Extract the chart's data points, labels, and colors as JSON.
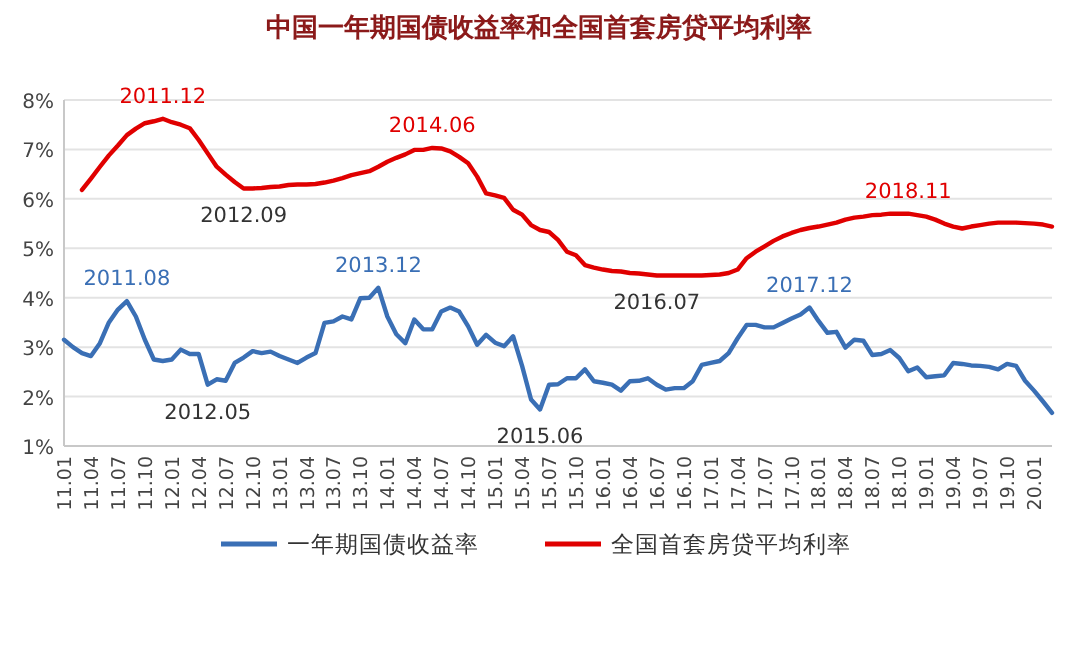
{
  "chart_data": {
    "type": "line",
    "title": "中国一年期国债收益率和全国首套房贷平均利率",
    "x": [
      "2011-01",
      "2011-02",
      "2011-03",
      "2011-04",
      "2011-05",
      "2011-06",
      "2011-07",
      "2011-08",
      "2011-09",
      "2011-10",
      "2011-11",
      "2011-12",
      "2012-01",
      "2012-02",
      "2012-03",
      "2012-04",
      "2012-05",
      "2012-06",
      "2012-07",
      "2012-08",
      "2012-09",
      "2012-10",
      "2012-11",
      "2012-12",
      "2013-01",
      "2013-02",
      "2013-03",
      "2013-04",
      "2013-05",
      "2013-06",
      "2013-07",
      "2013-08",
      "2013-09",
      "2013-10",
      "2013-11",
      "2013-12",
      "2014-01",
      "2014-02",
      "2014-03",
      "2014-04",
      "2014-05",
      "2014-06",
      "2014-07",
      "2014-08",
      "2014-09",
      "2014-10",
      "2014-11",
      "2014-12",
      "2015-01",
      "2015-02",
      "2015-03",
      "2015-04",
      "2015-05",
      "2015-06",
      "2015-07",
      "2015-08",
      "2015-09",
      "2015-10",
      "2015-11",
      "2015-12",
      "2016-01",
      "2016-02",
      "2016-03",
      "2016-04",
      "2016-05",
      "2016-06",
      "2016-07",
      "2016-08",
      "2016-09",
      "2016-10",
      "2016-11",
      "2016-12",
      "2017-01",
      "2017-02",
      "2017-03",
      "2017-04",
      "2017-05",
      "2017-06",
      "2017-07",
      "2017-08",
      "2017-09",
      "2017-10",
      "2017-11",
      "2017-12",
      "2018-01",
      "2018-02",
      "2018-03",
      "2018-04",
      "2018-05",
      "2018-06",
      "2018-07",
      "2018-08",
      "2018-09",
      "2018-10",
      "2018-11",
      "2018-12",
      "2019-01",
      "2019-02",
      "2019-03",
      "2019-04",
      "2019-05",
      "2019-06",
      "2019-07",
      "2019-08",
      "2019-09",
      "2019-10",
      "2019-11",
      "2019-12",
      "2020-01",
      "2020-02",
      "2020-03"
    ],
    "series": [
      {
        "name": "一年期国债收益率",
        "color": "#3a6fb5",
        "values": [
          3.15,
          3.0,
          2.88,
          2.82,
          3.08,
          3.5,
          3.76,
          3.93,
          3.62,
          3.15,
          2.75,
          2.72,
          2.75,
          2.95,
          2.86,
          2.86,
          2.24,
          2.35,
          2.32,
          2.68,
          2.79,
          2.92,
          2.88,
          2.91,
          2.82,
          2.75,
          2.68,
          2.79,
          2.88,
          3.49,
          3.52,
          3.62,
          3.56,
          3.99,
          4.0,
          4.2,
          3.62,
          3.26,
          3.08,
          3.56,
          3.36,
          3.36,
          3.72,
          3.8,
          3.72,
          3.42,
          3.05,
          3.25,
          3.09,
          3.02,
          3.22,
          2.62,
          1.94,
          1.74,
          2.24,
          2.25,
          2.37,
          2.37,
          2.55,
          2.31,
          2.28,
          2.24,
          2.12,
          2.31,
          2.32,
          2.37,
          2.24,
          2.14,
          2.17,
          2.17,
          2.31,
          2.64,
          2.68,
          2.72,
          2.88,
          3.18,
          3.45,
          3.45,
          3.4,
          3.4,
          3.49,
          3.58,
          3.66,
          3.8,
          3.53,
          3.29,
          3.31,
          2.99,
          3.15,
          3.13,
          2.84,
          2.86,
          2.94,
          2.78,
          2.51,
          2.59,
          2.39,
          2.41,
          2.43,
          2.68,
          2.66,
          2.63,
          2.62,
          2.6,
          2.55,
          2.66,
          2.62,
          2.32,
          2.12,
          1.9,
          1.67
        ]
      },
      {
        "name": "全国首套房贷平均利率",
        "color": "#e00000",
        "values": [
          null,
          null,
          6.18,
          6.41,
          6.65,
          6.88,
          7.08,
          7.29,
          7.42,
          7.53,
          7.57,
          7.62,
          7.55,
          7.5,
          7.43,
          7.19,
          6.92,
          6.65,
          6.49,
          6.34,
          6.21,
          6.21,
          6.22,
          6.24,
          6.25,
          6.28,
          6.29,
          6.29,
          6.3,
          6.33,
          6.37,
          6.42,
          6.48,
          6.52,
          6.56,
          6.65,
          6.75,
          6.83,
          6.9,
          6.99,
          6.99,
          7.03,
          7.02,
          6.96,
          6.85,
          6.72,
          6.45,
          6.11,
          6.07,
          6.02,
          5.78,
          5.68,
          5.47,
          5.37,
          5.33,
          5.17,
          4.93,
          4.86,
          4.66,
          4.61,
          4.57,
          4.54,
          4.53,
          4.5,
          4.49,
          4.47,
          4.45,
          4.45,
          4.45,
          4.45,
          4.45,
          4.45,
          4.46,
          4.47,
          4.5,
          4.57,
          4.8,
          4.93,
          5.04,
          5.15,
          5.24,
          5.31,
          5.37,
          5.41,
          5.44,
          5.48,
          5.52,
          5.58,
          5.62,
          5.64,
          5.67,
          5.68,
          5.7,
          5.7,
          5.7,
          5.67,
          5.64,
          5.58,
          5.5,
          5.44,
          5.4,
          5.44,
          5.47,
          5.5,
          5.52,
          5.52,
          5.52,
          5.51,
          5.5,
          5.48,
          5.44
        ]
      }
    ],
    "xlim": [
      "2011-01",
      "2020-03"
    ],
    "xticks": [
      {
        "value": "2011-01",
        "label": "11.01"
      },
      {
        "value": "2011-04",
        "label": "11.04"
      },
      {
        "value": "2011-07",
        "label": "11.07"
      },
      {
        "value": "2011-10",
        "label": "11.10"
      },
      {
        "value": "2012-01",
        "label": "12.01"
      },
      {
        "value": "2012-04",
        "label": "12.04"
      },
      {
        "value": "2012-07",
        "label": "12.07"
      },
      {
        "value": "2012-10",
        "label": "12.10"
      },
      {
        "value": "2013-01",
        "label": "13.01"
      },
      {
        "value": "2013-04",
        "label": "13.04"
      },
      {
        "value": "2013-07",
        "label": "13.07"
      },
      {
        "value": "2013-10",
        "label": "13.10"
      },
      {
        "value": "2014-01",
        "label": "14.01"
      },
      {
        "value": "2014-04",
        "label": "14.04"
      },
      {
        "value": "2014-07",
        "label": "14.07"
      },
      {
        "value": "2014-10",
        "label": "14.10"
      },
      {
        "value": "2015-01",
        "label": "15.01"
      },
      {
        "value": "2015-04",
        "label": "15.04"
      },
      {
        "value": "2015-07",
        "label": "15.07"
      },
      {
        "value": "2015-10",
        "label": "15.10"
      },
      {
        "value": "2016-01",
        "label": "16.01"
      },
      {
        "value": "2016-04",
        "label": "16.04"
      },
      {
        "value": "2016-07",
        "label": "16.07"
      },
      {
        "value": "2016-10",
        "label": "16.10"
      },
      {
        "value": "2017-01",
        "label": "17.01"
      },
      {
        "value": "2017-04",
        "label": "17.04"
      },
      {
        "value": "2017-07",
        "label": "17.07"
      },
      {
        "value": "2017-10",
        "label": "17.10"
      },
      {
        "value": "2018-01",
        "label": "18.01"
      },
      {
        "value": "2018-04",
        "label": "18.04"
      },
      {
        "value": "2018-07",
        "label": "18.07"
      },
      {
        "value": "2018-10",
        "label": "18.10"
      },
      {
        "value": "2019-01",
        "label": "19.01"
      },
      {
        "value": "2019-04",
        "label": "19.04"
      },
      {
        "value": "2019-07",
        "label": "19.07"
      },
      {
        "value": "2019-10",
        "label": "19.10"
      },
      {
        "value": "2020-01",
        "label": "20.01"
      }
    ],
    "ylim": [
      1,
      8
    ],
    "yticks": [
      {
        "value": 1,
        "label": "1%"
      },
      {
        "value": 2,
        "label": "2%"
      },
      {
        "value": 3,
        "label": "3%"
      },
      {
        "value": 4,
        "label": "4%"
      },
      {
        "value": 5,
        "label": "5%"
      },
      {
        "value": 6,
        "label": "6%"
      },
      {
        "value": 7,
        "label": "7%"
      },
      {
        "value": 8,
        "label": "8%"
      }
    ],
    "grid": "y",
    "legend": "bottom",
    "marker": "none",
    "line_style": "solid",
    "annotations": [
      {
        "text": "2011.12",
        "x": "2011-12",
        "y": 7.62
      },
      {
        "text": "2012.09",
        "x": "2012-09",
        "y": 6.21
      },
      {
        "text": "2014.06",
        "x": "2014-06",
        "y": 7.03
      },
      {
        "text": "2016.07",
        "x": "2016-07",
        "y": 4.45
      },
      {
        "text": "2018.11",
        "x": "2018-11",
        "y": 5.7
      },
      {
        "text": "2011.08",
        "x": "2011-08",
        "y": 3.93
      },
      {
        "text": "2012.05",
        "x": "2012-05",
        "y": 2.24
      },
      {
        "text": "2013.12",
        "x": "2013-12",
        "y": 4.2
      },
      {
        "text": "2015.06",
        "x": "2015-06",
        "y": 1.74
      },
      {
        "text": "2017.12",
        "x": "2017-12",
        "y": 3.8
      }
    ]
  }
}
